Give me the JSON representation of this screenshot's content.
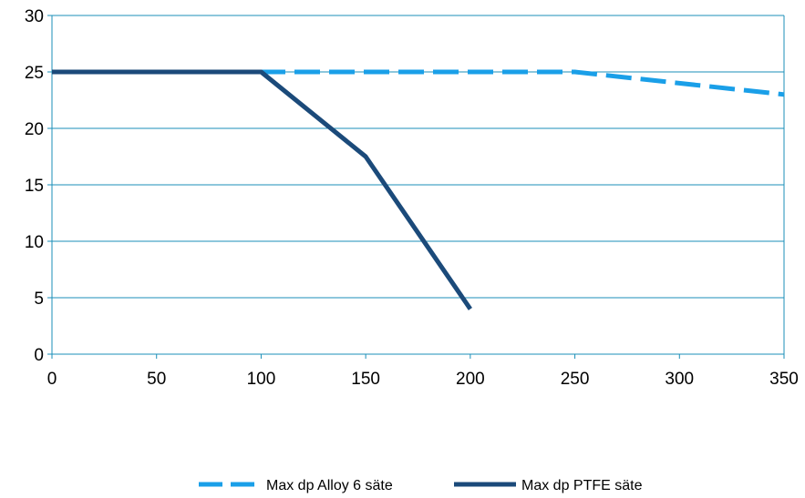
{
  "chart_data": {
    "type": "line",
    "xlim": [
      0,
      350
    ],
    "ylim": [
      0,
      30
    ],
    "x_ticks": [
      0,
      50,
      100,
      150,
      200,
      250,
      300,
      350
    ],
    "y_ticks": [
      0,
      5,
      10,
      15,
      20,
      25,
      30
    ],
    "grid": "horizontal",
    "legend_position": "bottom",
    "series": [
      {
        "name": "Max dp Alloy 6 säte",
        "color": "#1A9FE8",
        "style": "dashed",
        "points": [
          [
            0,
            25
          ],
          [
            100,
            25
          ],
          [
            250,
            25
          ],
          [
            350,
            23
          ]
        ]
      },
      {
        "name": "Max dp PTFE säte",
        "color": "#1B4A7A",
        "style": "solid",
        "points": [
          [
            0,
            25
          ],
          [
            100,
            25
          ],
          [
            150,
            17.5
          ],
          [
            200,
            4
          ]
        ]
      }
    ]
  }
}
